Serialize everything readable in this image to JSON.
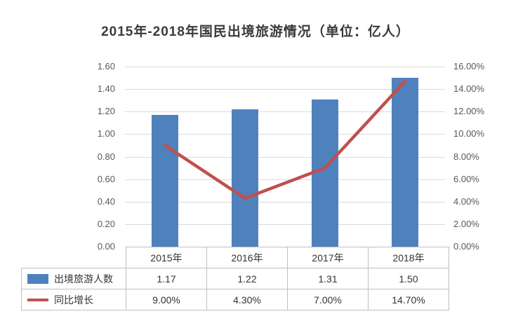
{
  "title": "2015年-2018年国民出境旅游情况（单位：亿人）",
  "chart_data": {
    "type": "combo",
    "categories": [
      "2015年",
      "2016年",
      "2017年",
      "2018年"
    ],
    "series": [
      {
        "name": "出境旅游人数",
        "type": "bar",
        "axis": "left",
        "color": "#4F81BD",
        "values": [
          1.17,
          1.22,
          1.31,
          1.5
        ],
        "value_labels": [
          "1.17",
          "1.22",
          "1.31",
          "1.50"
        ]
      },
      {
        "name": "同比增长",
        "type": "line",
        "axis": "right",
        "color": "#C0504D",
        "values": [
          9.0,
          4.3,
          7.0,
          14.7
        ],
        "value_labels": [
          "9.00%",
          "4.30%",
          "7.00%",
          "14.70%"
        ]
      }
    ],
    "left_axis": {
      "min": 0,
      "max": 1.6,
      "ticks": [
        "1.60",
        "1.40",
        "1.20",
        "1.00",
        "0.80",
        "0.60",
        "0.40",
        "0.20",
        "0.00"
      ]
    },
    "right_axis": {
      "min": 0,
      "max": 16,
      "ticks": [
        "16.00%",
        "14.00%",
        "12.00%",
        "10.00%",
        "8.00%",
        "6.00%",
        "4.00%",
        "2.00%",
        "0.00%"
      ]
    },
    "grid": true,
    "legend_position": "table-left",
    "colors": {
      "bar": "#4F81BD",
      "line": "#C0504D",
      "gridline": "#d9d9d9",
      "table_border": "#bfbfbf"
    }
  }
}
